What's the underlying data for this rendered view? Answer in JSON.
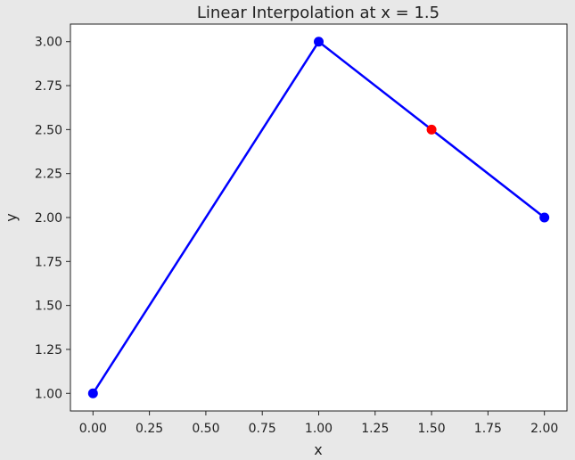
{
  "chart_data": {
    "type": "line",
    "title": "Linear Interpolation at x = 1.5",
    "xlabel": "x",
    "ylabel": "y",
    "xlim": [
      -0.1,
      2.1
    ],
    "ylim": [
      0.9,
      3.1
    ],
    "xticks": [
      0.0,
      0.25,
      0.5,
      0.75,
      1.0,
      1.25,
      1.5,
      1.75,
      2.0
    ],
    "xtick_labels": [
      "0.00",
      "0.25",
      "0.50",
      "0.75",
      "1.00",
      "1.25",
      "1.50",
      "1.75",
      "2.00"
    ],
    "yticks": [
      1.0,
      1.25,
      1.5,
      1.75,
      2.0,
      2.25,
      2.5,
      2.75,
      3.0
    ],
    "ytick_labels": [
      "1.00",
      "1.25",
      "1.50",
      "1.75",
      "2.00",
      "2.25",
      "2.50",
      "2.75",
      "3.00"
    ],
    "grid": false,
    "series": [
      {
        "x": [
          0.0,
          1.0,
          2.0
        ],
        "y": [
          1.0,
          3.0,
          2.0
        ],
        "color": "#0000ff",
        "marker": "circle"
      }
    ],
    "highlight_point": {
      "x": 1.5,
      "y": 2.5,
      "color": "#ff0000"
    }
  }
}
